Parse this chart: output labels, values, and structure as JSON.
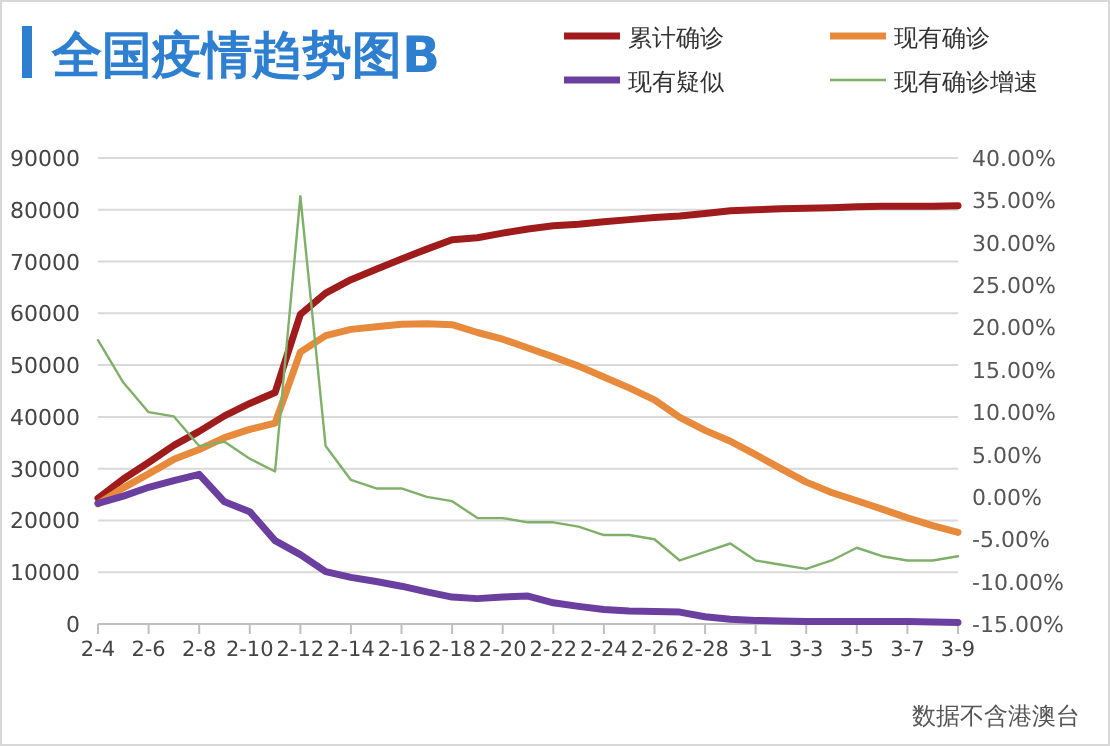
{
  "chart_data": {
    "type": "line",
    "title": "全国疫情趋势图B",
    "categories": [
      "2-4",
      null,
      "2-6",
      null,
      "2-8",
      null,
      "2-10",
      null,
      "2-12",
      null,
      "2-14",
      null,
      "2-16",
      null,
      "2-18",
      null,
      "2-20",
      null,
      "2-22",
      null,
      "2-24",
      null,
      "2-26",
      null,
      "2-28",
      null,
      "3-1",
      null,
      "3-3",
      null,
      "3-5",
      null,
      "3-7",
      null,
      "3-9"
    ],
    "series": [
      {
        "name": "累计确诊",
        "color": "#a01c1c",
        "values": [
          24300,
          28000,
          31200,
          34500,
          37200,
          40200,
          42600,
          44700,
          59800,
          63900,
          66500,
          68500,
          70500,
          72400,
          74200,
          74600,
          75500,
          76300,
          76900,
          77200,
          77700,
          78100,
          78500,
          78800,
          79300,
          79800,
          80000,
          80200,
          80300,
          80400,
          80600,
          80700,
          80700,
          80700,
          80800
        ]
      },
      {
        "name": "现有确诊",
        "color": "#e88a3c",
        "values": [
          23200,
          26300,
          29000,
          31800,
          33700,
          36000,
          37600,
          38800,
          52500,
          55700,
          56900,
          57400,
          57900,
          58000,
          57800,
          56300,
          55000,
          53300,
          51600,
          49800,
          47700,
          45600,
          43300,
          39900,
          37400,
          35300,
          32700,
          30000,
          27400,
          25400,
          23800,
          22200,
          20500,
          19000,
          17700
        ]
      },
      {
        "name": "现有疑似",
        "color": "#6b3fa0",
        "values": [
          23300,
          24700,
          26400,
          27700,
          28900,
          23600,
          21700,
          16100,
          13400,
          10100,
          9000,
          8200,
          7300,
          6200,
          5200,
          4900,
          5200,
          5400,
          4100,
          3400,
          2800,
          2500,
          2400,
          2300,
          1400,
          900,
          700,
          600,
          500,
          500,
          500,
          500,
          500,
          400,
          300
        ]
      },
      {
        "name": "现有确诊增速",
        "color": "#7fb069",
        "axis": "y2",
        "values": [
          18.5,
          13.5,
          10,
          9.5,
          6,
          6.5,
          4.5,
          3,
          35.5,
          6,
          2,
          1,
          1,
          0,
          -0.5,
          -2.5,
          -2.5,
          -3,
          -3,
          -3.5,
          -4.5,
          -4.5,
          -5,
          -7.5,
          -6.5,
          -5.5,
          -7.5,
          -8,
          -8.5,
          -7.5,
          -6,
          -7,
          -7.5,
          -7.5,
          -7
        ]
      }
    ],
    "ylim": [
      0,
      90000
    ],
    "yticks": [
      0,
      10000,
      20000,
      30000,
      40000,
      50000,
      60000,
      70000,
      80000,
      90000
    ],
    "y2lim": [
      -15,
      40
    ],
    "y2ticks": [
      {
        "value": -15,
        "label": "-15.00%"
      },
      {
        "value": -10,
        "label": "-10.00%"
      },
      {
        "value": -5,
        "label": "-5.00%"
      },
      {
        "value": 0,
        "label": "0.00%"
      },
      {
        "value": 5,
        "label": "5.00%"
      },
      {
        "value": 10,
        "label": "10.00%"
      },
      {
        "value": 15,
        "label": "15.00%"
      },
      {
        "value": 20,
        "label": "20.00%"
      },
      {
        "value": 25,
        "label": "25.00%"
      },
      {
        "value": 30,
        "label": "30.00%"
      },
      {
        "value": 35,
        "label": "35.00%"
      },
      {
        "value": 40,
        "label": "40.00%"
      }
    ],
    "grid": "y",
    "legend": "top right",
    "marker": "none",
    "line_style": "solid",
    "annotations": [
      "数据不含港澳台"
    ]
  }
}
